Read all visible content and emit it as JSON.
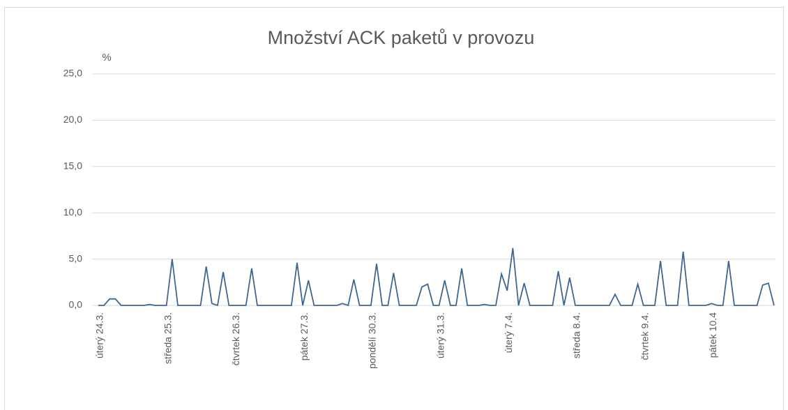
{
  "chart_data": {
    "type": "line",
    "title": "Množství ACK paketů v provozu",
    "y_label": "%",
    "categories": [
      "úterý 24.3.",
      null,
      null,
      null,
      null,
      null,
      null,
      null,
      null,
      null,
      null,
      null,
      "středa 25.3.",
      null,
      null,
      null,
      null,
      null,
      null,
      null,
      null,
      null,
      null,
      null,
      "čtvrtek 26.3.",
      null,
      null,
      null,
      null,
      null,
      null,
      null,
      null,
      null,
      null,
      null,
      "pátek 27.3.",
      null,
      null,
      null,
      null,
      null,
      null,
      null,
      null,
      null,
      null,
      null,
      "pondělí 30.3.",
      null,
      null,
      null,
      null,
      null,
      null,
      null,
      null,
      null,
      null,
      null,
      "úterý 31.3.",
      null,
      null,
      null,
      null,
      null,
      null,
      null,
      null,
      null,
      null,
      null,
      "úterý 7.4.",
      null,
      null,
      null,
      null,
      null,
      null,
      null,
      null,
      null,
      null,
      null,
      "středa 8.4.",
      null,
      null,
      null,
      null,
      null,
      null,
      null,
      null,
      null,
      null,
      null,
      "čtvrtek 9.4.",
      null,
      null,
      null,
      null,
      null,
      null,
      null,
      null,
      null,
      null,
      null,
      "pátek 10.4",
      null,
      null,
      null,
      null,
      null,
      null,
      null,
      null,
      null,
      null,
      null
    ],
    "values": [
      0,
      0,
      0.7,
      0.7,
      0,
      0,
      0,
      0,
      0,
      0.1,
      0,
      0,
      0,
      5.0,
      0,
      0,
      0,
      0,
      0,
      4.2,
      0.2,
      0,
      3.6,
      0,
      0,
      0,
      0,
      4.0,
      0,
      0,
      0,
      0,
      0,
      0,
      0,
      4.6,
      0,
      2.7,
      0,
      0,
      0,
      0,
      0,
      0.2,
      0,
      2.8,
      0,
      0,
      0,
      4.5,
      0,
      0,
      3.5,
      0,
      0,
      0,
      0,
      2.0,
      2.3,
      0,
      0,
      2.7,
      0,
      0,
      4.0,
      0,
      0,
      0,
      0.1,
      0,
      0,
      3.4,
      1.6,
      6.2,
      0,
      2.4,
      0,
      0,
      0,
      0,
      0,
      3.7,
      0,
      3.0,
      0,
      0,
      0,
      0,
      0,
      0,
      0,
      1.2,
      0,
      0,
      0,
      2.3,
      0,
      0,
      0,
      4.8,
      0,
      0,
      0,
      5.8,
      0,
      0,
      0,
      0,
      0.2,
      0,
      0,
      4.8,
      0,
      0,
      0,
      0,
      0,
      2.2,
      2.4,
      0
    ],
    "color": "#3e6690",
    "ylim": [
      0,
      25
    ],
    "yticks": [
      {
        "value": 0,
        "label": "0,0"
      },
      {
        "value": 5,
        "label": "5,0"
      },
      {
        "value": 10,
        "label": "10,0"
      },
      {
        "value": 15,
        "label": "15,0"
      },
      {
        "value": 20,
        "label": "20,0"
      },
      {
        "value": 25,
        "label": "25,0"
      }
    ],
    "grid": true
  }
}
